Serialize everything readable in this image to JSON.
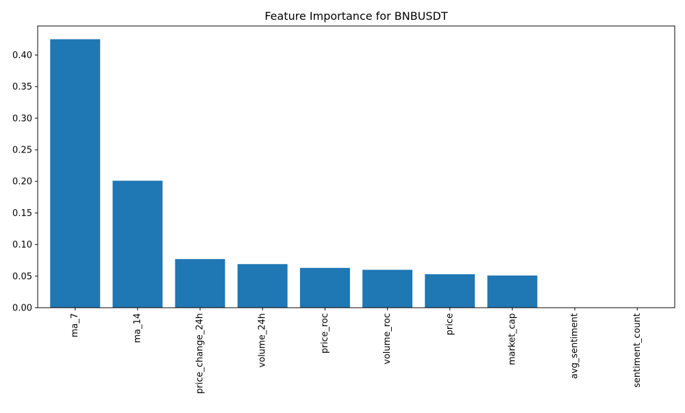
{
  "chart_data": {
    "type": "bar",
    "title": "Feature Importance for BNBUSDT",
    "xlabel": "",
    "ylabel": "",
    "categories": [
      "ma_7",
      "ma_14",
      "price_change_24h",
      "volume_24h",
      "price_roc",
      "volume_roc",
      "price",
      "market_cap",
      "avg_sentiment",
      "sentiment_count"
    ],
    "values": [
      0.425,
      0.201,
      0.077,
      0.069,
      0.063,
      0.06,
      0.053,
      0.051,
      0.0,
      0.0
    ],
    "ylim": [
      0,
      0.446
    ],
    "yticks": [
      0.0,
      0.05,
      0.1,
      0.15,
      0.2,
      0.25,
      0.3,
      0.35,
      0.4
    ],
    "ytick_labels": [
      "0.00",
      "0.05",
      "0.10",
      "0.15",
      "0.20",
      "0.25",
      "0.30",
      "0.35",
      "0.40"
    ],
    "xtick_rotation": "vertical",
    "grid": false,
    "legend": "none",
    "colors": {
      "bar": "#1f77b4",
      "axis": "#000000",
      "background": "#ffffff"
    }
  }
}
